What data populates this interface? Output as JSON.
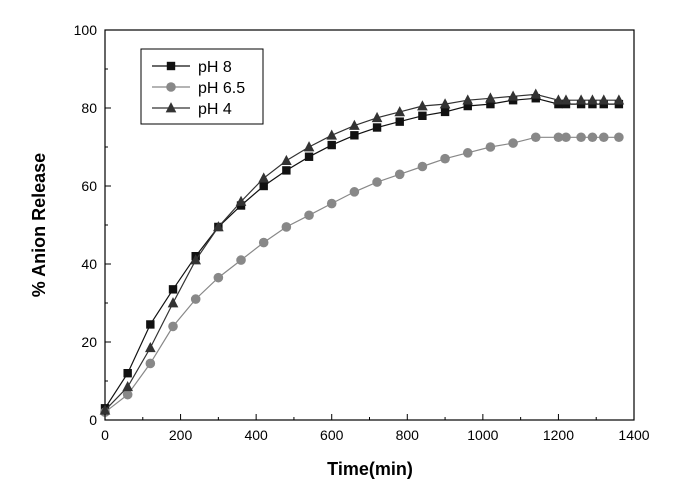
{
  "chart_data": {
    "type": "line",
    "title": "",
    "xlabel": "Time(min)",
    "ylabel": "% Anion Release",
    "xlim": [
      0,
      1400
    ],
    "ylim": [
      0,
      100
    ],
    "x_ticks": [
      0,
      200,
      400,
      600,
      800,
      1000,
      1200,
      1400
    ],
    "y_ticks": [
      0,
      20,
      40,
      60,
      80,
      100
    ],
    "grid": false,
    "legend_position": "top-left",
    "series": [
      {
        "name": "pH 8",
        "marker": "square",
        "color": "#111111",
        "x": [
          0,
          60,
          120,
          180,
          240,
          300,
          360,
          420,
          480,
          540,
          600,
          660,
          720,
          780,
          840,
          900,
          960,
          1020,
          1080,
          1140,
          1200,
          1220,
          1260,
          1290,
          1320,
          1360
        ],
        "y": [
          3,
          12,
          24.5,
          33.5,
          42,
          49.5,
          55,
          60,
          64,
          67.5,
          70.5,
          73,
          75,
          76.5,
          78,
          79,
          80.5,
          81,
          82,
          82.5,
          81,
          81,
          81,
          81,
          81,
          81
        ]
      },
      {
        "name": "pH 6.5",
        "marker": "circle",
        "color": "#888888",
        "x": [
          0,
          60,
          120,
          180,
          240,
          300,
          360,
          420,
          480,
          540,
          600,
          660,
          720,
          780,
          840,
          900,
          960,
          1020,
          1080,
          1140,
          1200,
          1220,
          1260,
          1290,
          1320,
          1360
        ],
        "y": [
          2,
          6.5,
          14.5,
          24,
          31,
          36.5,
          41,
          45.5,
          49.5,
          52.5,
          55.5,
          58.5,
          61,
          63,
          65,
          67,
          68.5,
          70,
          71,
          72.5,
          72.5,
          72.5,
          72.5,
          72.5,
          72.5,
          72.5
        ]
      },
      {
        "name": "pH 4",
        "marker": "triangle",
        "color": "#333333",
        "x": [
          0,
          60,
          120,
          180,
          240,
          300,
          360,
          420,
          480,
          540,
          600,
          660,
          720,
          780,
          840,
          900,
          960,
          1020,
          1080,
          1140,
          1200,
          1220,
          1260,
          1290,
          1320,
          1360
        ],
        "y": [
          2.5,
          8.5,
          18.5,
          30,
          41,
          49.5,
          56,
          62,
          66.5,
          70,
          73,
          75.5,
          77.5,
          79,
          80.5,
          81,
          82,
          82.5,
          83,
          83.5,
          82,
          82,
          82,
          82,
          82,
          82
        ]
      }
    ]
  }
}
